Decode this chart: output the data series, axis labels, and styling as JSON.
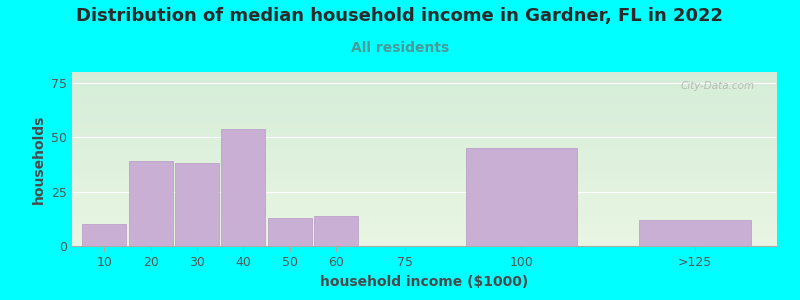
{
  "title": "Distribution of median household income in Gardner, FL in 2022",
  "subtitle": "All residents",
  "xlabel": "household income ($1000)",
  "ylabel": "households",
  "background_color": "#00FFFF",
  "bar_color": "#c9afd4",
  "bar_edge_color": "#b898c8",
  "values": [
    10,
    39,
    38,
    54,
    13,
    14,
    0,
    45,
    12
  ],
  "bar_positions": [
    10,
    20,
    30,
    40,
    50,
    60,
    75,
    100,
    137.5
  ],
  "bar_widths": [
    9.5,
    9.5,
    9.5,
    9.5,
    9.5,
    9.5,
    14,
    24,
    24
  ],
  "xtick_positions": [
    10,
    20,
    30,
    40,
    50,
    60,
    75,
    100,
    137.5
  ],
  "xtick_labels": [
    "10",
    "20",
    "30",
    "40",
    "50",
    "60",
    "75",
    "100",
    ">125"
  ],
  "ylim": [
    0,
    80
  ],
  "xlim": [
    3,
    155
  ],
  "yticks": [
    0,
    25,
    50,
    75
  ],
  "title_fontsize": 13,
  "subtitle_fontsize": 10,
  "axis_label_fontsize": 10,
  "tick_fontsize": 9,
  "title_color": "#2a2a2a",
  "subtitle_color": "#4a9a9a",
  "axis_label_color": "#4a4a4a",
  "tick_color": "#555555",
  "grid_color": "#ffffff",
  "watermark": "City-Data.com",
  "bg_bottom": "#e8f5e2",
  "bg_top": "#d5edd8"
}
